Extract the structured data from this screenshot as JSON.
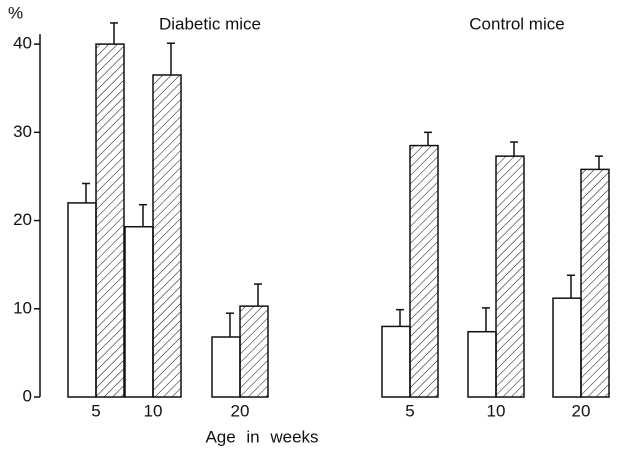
{
  "chart_data": {
    "type": "bar",
    "ylabel": "%",
    "xlabel": "Age in weeks",
    "annotations": [
      "Diabetic mice",
      "Control mice"
    ],
    "categories": [
      "5",
      "10",
      "20",
      "5",
      "10",
      "20"
    ],
    "series": [
      {
        "color": "#ffffff",
        "hatch": false,
        "values": [
          22,
          19.3,
          6.8,
          8,
          7.4,
          11.2
        ],
        "errors": [
          2.2,
          2.5,
          2.7,
          1.9,
          2.7,
          2.6
        ]
      },
      {
        "color": "#ffffff",
        "hatch": true,
        "values": [
          40,
          36.5,
          10.3,
          28.5,
          27.3,
          25.8
        ],
        "errors": [
          2.4,
          3.6,
          2.5,
          1.5,
          1.6,
          1.5
        ]
      }
    ],
    "ylim": [
      0,
      45
    ],
    "yticks": [
      0,
      10,
      20,
      30,
      40
    ],
    "grid": false
  }
}
